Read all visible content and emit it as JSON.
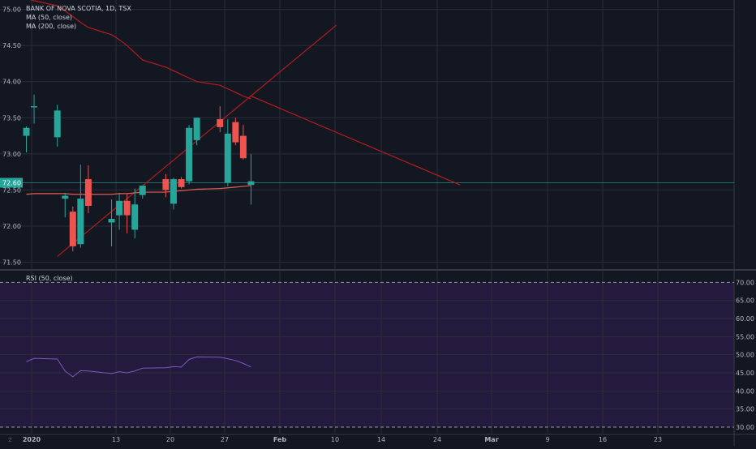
{
  "legend": {
    "title": "BANK OF NOVA SCOTIA, 1D, TSX",
    "ma50": "MA (50, close)",
    "ma200": "MA (200, close)",
    "rsi": "RSI (50, close)"
  },
  "watermark": "Z",
  "colors": {
    "background": "#131722",
    "grid": "#2a2e39",
    "up": "#26a69a",
    "down": "#ef5350",
    "ma50": "#e65c4f",
    "ma200": "#b71c1c",
    "trendline": "#b71c1c",
    "rsi_band": "#241a3d",
    "rsi_line": "#7e57c2",
    "axis_text": "#b2b5be",
    "last_price_line": "#26a69a"
  },
  "chart_data": [
    {
      "type": "candlestick",
      "xlabel": "",
      "ylabel": "",
      "ylim": [
        71.45,
        75.13
      ],
      "price_ticks": [
        "71.50",
        "72.00",
        "72.50",
        "73.00",
        "73.50",
        "74.00",
        "74.50",
        "75.00"
      ],
      "last_price": "72.60",
      "date_ticks": [
        "2020",
        "13",
        "20",
        "27",
        "Feb",
        "10",
        "14",
        "24",
        "Mar",
        "9",
        "16",
        "23"
      ],
      "grid": true,
      "candles": [
        {
          "date": "2020-01-02",
          "open": 73.25,
          "high": 73.38,
          "low": 73.02,
          "close": 73.36
        },
        {
          "date": "2020-01-03",
          "open": 73.65,
          "high": 73.82,
          "low": 73.42,
          "close": 73.66
        },
        {
          "date": "2020-01-06",
          "open": 73.23,
          "high": 73.68,
          "low": 73.1,
          "close": 73.6
        },
        {
          "date": "2020-01-07",
          "open": 72.38,
          "high": 72.46,
          "low": 72.12,
          "close": 72.42
        },
        {
          "date": "2020-01-08",
          "open": 72.2,
          "high": 72.27,
          "low": 71.65,
          "close": 71.72
        },
        {
          "date": "2020-01-09",
          "open": 71.75,
          "high": 72.85,
          "low": 71.7,
          "close": 72.38
        },
        {
          "date": "2020-01-10",
          "open": 72.65,
          "high": 72.84,
          "low": 72.18,
          "close": 72.28
        },
        {
          "date": "2020-01-13",
          "open": 72.05,
          "high": 72.37,
          "low": 71.72,
          "close": 72.1
        },
        {
          "date": "2020-01-14",
          "open": 72.15,
          "high": 72.46,
          "low": 71.95,
          "close": 72.35
        },
        {
          "date": "2020-01-15",
          "open": 72.35,
          "high": 72.44,
          "low": 71.9,
          "close": 72.15
        },
        {
          "date": "2020-01-16",
          "open": 71.95,
          "high": 72.52,
          "low": 71.83,
          "close": 72.3
        },
        {
          "date": "2020-01-17",
          "open": 72.43,
          "high": 72.56,
          "low": 72.38,
          "close": 72.56
        },
        {
          "date": "2020-01-20",
          "open": 72.65,
          "high": 72.72,
          "low": 72.4,
          "close": 72.5
        },
        {
          "date": "2020-01-21",
          "open": 72.31,
          "high": 72.67,
          "low": 72.23,
          "close": 72.65
        },
        {
          "date": "2020-01-22",
          "open": 72.65,
          "high": 72.68,
          "low": 72.52,
          "close": 72.54
        },
        {
          "date": "2020-01-23",
          "open": 72.62,
          "high": 73.4,
          "low": 72.58,
          "close": 73.36
        },
        {
          "date": "2020-01-24",
          "open": 73.19,
          "high": 73.5,
          "low": 73.12,
          "close": 73.5
        },
        {
          "date": "2020-01-27",
          "open": 73.48,
          "high": 73.66,
          "low": 73.3,
          "close": 73.37
        },
        {
          "date": "2020-01-28",
          "open": 72.6,
          "high": 73.48,
          "low": 72.55,
          "close": 73.28
        },
        {
          "date": "2020-01-29",
          "open": 73.44,
          "high": 73.5,
          "low": 73.12,
          "close": 73.16
        },
        {
          "date": "2020-01-30",
          "open": 73.25,
          "high": 73.4,
          "low": 72.92,
          "close": 72.94
        },
        {
          "date": "2020-01-31",
          "open": 72.57,
          "high": 73.0,
          "low": 72.3,
          "close": 72.62
        }
      ],
      "series": [
        {
          "name": "MA (50, close)",
          "values": [
            72.44,
            72.45,
            72.45,
            72.45,
            72.44,
            72.44,
            72.44,
            72.44,
            72.45,
            72.45,
            72.46,
            72.47,
            72.47,
            72.48,
            72.49,
            72.5,
            72.51,
            72.52,
            72.53,
            72.54,
            72.55,
            72.56
          ]
        },
        {
          "name": "MA (200, close)",
          "values": [
            75.15,
            75.12,
            75.05,
            74.98,
            74.9,
            74.82,
            74.75,
            74.65,
            74.58,
            74.5,
            74.4,
            74.3,
            74.2,
            74.15,
            74.1,
            74.05,
            74.0,
            73.95,
            73.9,
            73.85,
            73.8,
            73.76
          ]
        }
      ],
      "trend_lines": [
        {
          "from": {
            "date": "2020-01-06",
            "price": 71.58
          },
          "to": {
            "date": "2020-02-11",
            "price": 74.78
          }
        },
        {
          "from": {
            "date": "2020-01-31",
            "price": 73.8
          },
          "to": {
            "date": "2020-02-27",
            "price": 72.57
          }
        }
      ]
    },
    {
      "type": "line",
      "title": "RSI (50, close)",
      "ylim": [
        28.2,
        73.0
      ],
      "ticks": [
        "30.00",
        "35.00",
        "40.00",
        "45.00",
        "50.00",
        "55.00",
        "60.00",
        "65.00",
        "70.00"
      ],
      "band": [
        30,
        70
      ],
      "series": [
        {
          "name": "RSI (50, close)",
          "values": [
            48.1,
            49.0,
            48.8,
            45.5,
            43.9,
            45.6,
            45.5,
            44.8,
            45.3,
            45.0,
            45.5,
            46.3,
            46.4,
            46.7,
            46.6,
            48.7,
            49.4,
            49.3,
            48.9,
            48.4,
            47.6,
            46.6
          ]
        }
      ]
    }
  ]
}
